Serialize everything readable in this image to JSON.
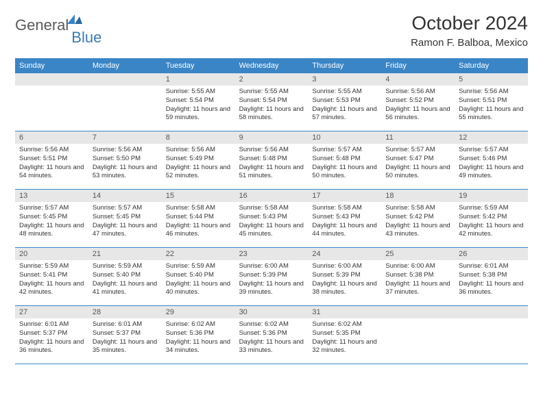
{
  "logo": {
    "text_general": "General",
    "text_blue": "Blue",
    "icon_color": "#3a85c6"
  },
  "title": "October 2024",
  "location": "Ramon F. Balboa, Mexico",
  "weekdays": [
    "Sunday",
    "Monday",
    "Tuesday",
    "Wednesday",
    "Thursday",
    "Friday",
    "Saturday"
  ],
  "colors": {
    "header_bg": "#3a85c6",
    "daynum_bg": "#e7e7e7",
    "text": "#333333",
    "logo_gray": "#5a5a5a",
    "logo_blue": "#3a7ab5"
  },
  "weeks": [
    [
      {
        "empty": true
      },
      {
        "empty": true
      },
      {
        "num": "1",
        "sunrise": "Sunrise: 5:55 AM",
        "sunset": "Sunset: 5:54 PM",
        "daylight": "Daylight: 11 hours and 59 minutes."
      },
      {
        "num": "2",
        "sunrise": "Sunrise: 5:55 AM",
        "sunset": "Sunset: 5:54 PM",
        "daylight": "Daylight: 11 hours and 58 minutes."
      },
      {
        "num": "3",
        "sunrise": "Sunrise: 5:55 AM",
        "sunset": "Sunset: 5:53 PM",
        "daylight": "Daylight: 11 hours and 57 minutes."
      },
      {
        "num": "4",
        "sunrise": "Sunrise: 5:56 AM",
        "sunset": "Sunset: 5:52 PM",
        "daylight": "Daylight: 11 hours and 56 minutes."
      },
      {
        "num": "5",
        "sunrise": "Sunrise: 5:56 AM",
        "sunset": "Sunset: 5:51 PM",
        "daylight": "Daylight: 11 hours and 55 minutes."
      }
    ],
    [
      {
        "num": "6",
        "sunrise": "Sunrise: 5:56 AM",
        "sunset": "Sunset: 5:51 PM",
        "daylight": "Daylight: 11 hours and 54 minutes."
      },
      {
        "num": "7",
        "sunrise": "Sunrise: 5:56 AM",
        "sunset": "Sunset: 5:50 PM",
        "daylight": "Daylight: 11 hours and 53 minutes."
      },
      {
        "num": "8",
        "sunrise": "Sunrise: 5:56 AM",
        "sunset": "Sunset: 5:49 PM",
        "daylight": "Daylight: 11 hours and 52 minutes."
      },
      {
        "num": "9",
        "sunrise": "Sunrise: 5:56 AM",
        "sunset": "Sunset: 5:48 PM",
        "daylight": "Daylight: 11 hours and 51 minutes."
      },
      {
        "num": "10",
        "sunrise": "Sunrise: 5:57 AM",
        "sunset": "Sunset: 5:48 PM",
        "daylight": "Daylight: 11 hours and 50 minutes."
      },
      {
        "num": "11",
        "sunrise": "Sunrise: 5:57 AM",
        "sunset": "Sunset: 5:47 PM",
        "daylight": "Daylight: 11 hours and 50 minutes."
      },
      {
        "num": "12",
        "sunrise": "Sunrise: 5:57 AM",
        "sunset": "Sunset: 5:46 PM",
        "daylight": "Daylight: 11 hours and 49 minutes."
      }
    ],
    [
      {
        "num": "13",
        "sunrise": "Sunrise: 5:57 AM",
        "sunset": "Sunset: 5:45 PM",
        "daylight": "Daylight: 11 hours and 48 minutes."
      },
      {
        "num": "14",
        "sunrise": "Sunrise: 5:57 AM",
        "sunset": "Sunset: 5:45 PM",
        "daylight": "Daylight: 11 hours and 47 minutes."
      },
      {
        "num": "15",
        "sunrise": "Sunrise: 5:58 AM",
        "sunset": "Sunset: 5:44 PM",
        "daylight": "Daylight: 11 hours and 46 minutes."
      },
      {
        "num": "16",
        "sunrise": "Sunrise: 5:58 AM",
        "sunset": "Sunset: 5:43 PM",
        "daylight": "Daylight: 11 hours and 45 minutes."
      },
      {
        "num": "17",
        "sunrise": "Sunrise: 5:58 AM",
        "sunset": "Sunset: 5:43 PM",
        "daylight": "Daylight: 11 hours and 44 minutes."
      },
      {
        "num": "18",
        "sunrise": "Sunrise: 5:58 AM",
        "sunset": "Sunset: 5:42 PM",
        "daylight": "Daylight: 11 hours and 43 minutes."
      },
      {
        "num": "19",
        "sunrise": "Sunrise: 5:59 AM",
        "sunset": "Sunset: 5:42 PM",
        "daylight": "Daylight: 11 hours and 42 minutes."
      }
    ],
    [
      {
        "num": "20",
        "sunrise": "Sunrise: 5:59 AM",
        "sunset": "Sunset: 5:41 PM",
        "daylight": "Daylight: 11 hours and 42 minutes."
      },
      {
        "num": "21",
        "sunrise": "Sunrise: 5:59 AM",
        "sunset": "Sunset: 5:40 PM",
        "daylight": "Daylight: 11 hours and 41 minutes."
      },
      {
        "num": "22",
        "sunrise": "Sunrise: 5:59 AM",
        "sunset": "Sunset: 5:40 PM",
        "daylight": "Daylight: 11 hours and 40 minutes."
      },
      {
        "num": "23",
        "sunrise": "Sunrise: 6:00 AM",
        "sunset": "Sunset: 5:39 PM",
        "daylight": "Daylight: 11 hours and 39 minutes."
      },
      {
        "num": "24",
        "sunrise": "Sunrise: 6:00 AM",
        "sunset": "Sunset: 5:39 PM",
        "daylight": "Daylight: 11 hours and 38 minutes."
      },
      {
        "num": "25",
        "sunrise": "Sunrise: 6:00 AM",
        "sunset": "Sunset: 5:38 PM",
        "daylight": "Daylight: 11 hours and 37 minutes."
      },
      {
        "num": "26",
        "sunrise": "Sunrise: 6:01 AM",
        "sunset": "Sunset: 5:38 PM",
        "daylight": "Daylight: 11 hours and 36 minutes."
      }
    ],
    [
      {
        "num": "27",
        "sunrise": "Sunrise: 6:01 AM",
        "sunset": "Sunset: 5:37 PM",
        "daylight": "Daylight: 11 hours and 36 minutes."
      },
      {
        "num": "28",
        "sunrise": "Sunrise: 6:01 AM",
        "sunset": "Sunset: 5:37 PM",
        "daylight": "Daylight: 11 hours and 35 minutes."
      },
      {
        "num": "29",
        "sunrise": "Sunrise: 6:02 AM",
        "sunset": "Sunset: 5:36 PM",
        "daylight": "Daylight: 11 hours and 34 minutes."
      },
      {
        "num": "30",
        "sunrise": "Sunrise: 6:02 AM",
        "sunset": "Sunset: 5:36 PM",
        "daylight": "Daylight: 11 hours and 33 minutes."
      },
      {
        "num": "31",
        "sunrise": "Sunrise: 6:02 AM",
        "sunset": "Sunset: 5:35 PM",
        "daylight": "Daylight: 11 hours and 32 minutes."
      },
      {
        "empty": true
      },
      {
        "empty": true
      }
    ]
  ]
}
